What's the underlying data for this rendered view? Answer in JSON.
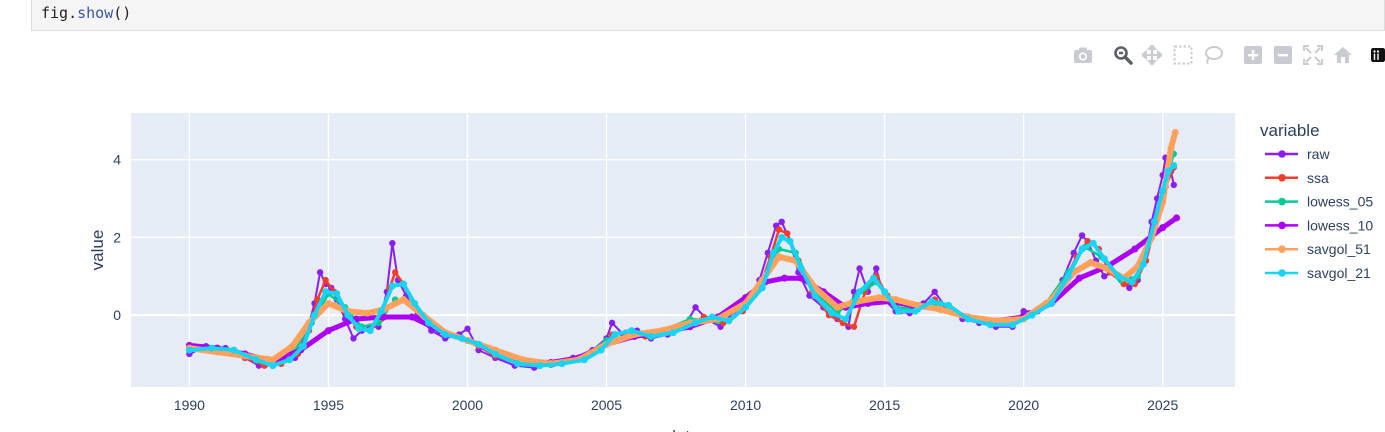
{
  "code": {
    "obj": "fig",
    "dot": ".",
    "fn": "show",
    "paren": "()"
  },
  "modebar": {
    "icons": [
      "camera-icon",
      "zoom-icon",
      "pan-icon",
      "box-select-icon",
      "lasso-select-icon",
      "zoom-in-icon",
      "zoom-out-icon",
      "autoscale-icon",
      "reset-axes-icon",
      "plotly-logo-icon"
    ]
  },
  "colors": {
    "plot_bg": "#e5ecf6",
    "raw": "#8b1ff2",
    "ssa": "#ef3f2c",
    "lowess_05": "#00cc96",
    "lowess_10": "#ab00f5",
    "savgol_51": "#ffa15a",
    "savgol_21": "#19d3f3"
  },
  "chart_data": {
    "type": "line",
    "xlabel": "date",
    "ylabel": "value",
    "legend_title": "variable",
    "legend_position": "right",
    "grid": true,
    "xlim": [
      1987.9,
      2027.6
    ],
    "ylim": [
      -1.85,
      5.2
    ],
    "xticks": [
      1990,
      1995,
      2000,
      2005,
      2010,
      2015,
      2020,
      2025
    ],
    "yticks": [
      0,
      2,
      4
    ],
    "series": [
      {
        "name": "raw",
        "marker_size": 3.2,
        "line_width": 2,
        "x": [
          1990,
          1990.6,
          1991.3,
          1992,
          1992.5,
          1992.9,
          1993.3,
          1993.8,
          1994.2,
          1994.5,
          1994.7,
          1994.9,
          1995.1,
          1995.3,
          1995.6,
          1995.9,
          1996.2,
          1996.5,
          1996.8,
          1997.1,
          1997.3,
          1997.5,
          1997.8,
          1998.2,
          1998.7,
          1999.2,
          1999.7,
          2000,
          2000.4,
          2001,
          2001.7,
          2002.4,
          2003.1,
          2003.8,
          2004.5,
          2005,
          2005.2,
          2005.6,
          2006.1,
          2006.6,
          2007.2,
          2007.8,
          2008.2,
          2008.6,
          2009.1,
          2009.6,
          2010.1,
          2010.5,
          2010.8,
          2011.1,
          2011.3,
          2011.6,
          2011.9,
          2012.3,
          2012.8,
          2013.3,
          2013.7,
          2013.9,
          2014.1,
          2014.4,
          2014.7,
          2015,
          2015.4,
          2015.9,
          2016.4,
          2016.8,
          2017.2,
          2017.8,
          2018.4,
          2019,
          2019.6,
          2020,
          2020.5,
          2021,
          2021.4,
          2021.8,
          2022.1,
          2022.3,
          2022.6,
          2022.9,
          2023.2,
          2023.5,
          2023.8,
          2024.1,
          2024.4,
          2024.6,
          2024.8,
          2025,
          2025.1,
          2025.2,
          2025.3,
          2025.4
        ],
        "y": [
          -1.0,
          -0.8,
          -0.85,
          -1.1,
          -1.3,
          -1.2,
          -1.25,
          -1.1,
          -0.5,
          0.3,
          1.1,
          0.8,
          0.7,
          0.4,
          -0.1,
          -0.6,
          -0.4,
          -0.3,
          -0.3,
          0.6,
          1.85,
          0.9,
          0.5,
          0.0,
          -0.4,
          -0.6,
          -0.5,
          -0.35,
          -0.9,
          -1.1,
          -1.3,
          -1.35,
          -1.25,
          -1.1,
          -0.9,
          -0.6,
          -0.2,
          -0.5,
          -0.4,
          -0.6,
          -0.5,
          -0.3,
          0.2,
          -0.1,
          -0.3,
          0.1,
          0.4,
          0.9,
          1.6,
          2.3,
          2.4,
          1.9,
          1.1,
          0.5,
          0.2,
          -0.1,
          -0.3,
          0.6,
          1.2,
          0.6,
          1.2,
          0.4,
          0.1,
          0.05,
          0.3,
          0.6,
          0.2,
          -0.1,
          -0.2,
          -0.3,
          -0.3,
          0.1,
          0.1,
          0.3,
          0.9,
          1.6,
          2.05,
          1.9,
          1.4,
          1.0,
          1.1,
          0.9,
          0.7,
          0.9,
          1.6,
          2.4,
          3.0,
          3.6,
          4.05,
          3.9,
          3.7,
          3.35
        ]
      },
      {
        "name": "ssa",
        "marker_size": 3.2,
        "line_width": 2.5,
        "x": [
          1990,
          1990.6,
          1991.3,
          1992,
          1992.7,
          1993.3,
          1993.9,
          1994.3,
          1994.6,
          1994.9,
          1995.2,
          1995.6,
          1996,
          1996.5,
          1996.9,
          1997.2,
          1997.4,
          1997.7,
          1998.1,
          1998.6,
          1999.2,
          1999.8,
          2000.4,
          2001,
          2001.8,
          2002.6,
          2003.4,
          2004.2,
          2004.8,
          2005.2,
          2005.7,
          2006.4,
          2007.2,
          2007.9,
          2008.5,
          2009.2,
          2009.9,
          2010.5,
          2010.9,
          2011.2,
          2011.5,
          2011.9,
          2012.4,
          2013,
          2013.5,
          2013.9,
          2014.3,
          2014.7,
          2015.1,
          2015.6,
          2016.2,
          2016.8,
          2017.4,
          2018,
          2018.8,
          2019.6,
          2020.3,
          2021,
          2021.5,
          2021.9,
          2022.3,
          2022.7,
          2023.1,
          2023.6,
          2024,
          2024.4,
          2024.8,
          2025.1,
          2025.4
        ],
        "y": [
          -0.9,
          -0.85,
          -0.9,
          -1.1,
          -1.3,
          -1.25,
          -1.0,
          -0.4,
          0.4,
          0.9,
          0.6,
          0.1,
          -0.3,
          -0.4,
          -0.1,
          0.7,
          1.1,
          0.8,
          0.3,
          -0.2,
          -0.5,
          -0.6,
          -0.8,
          -1.05,
          -1.25,
          -1.3,
          -1.25,
          -1.1,
          -0.9,
          -0.5,
          -0.45,
          -0.55,
          -0.45,
          -0.3,
          -0.05,
          -0.2,
          0.1,
          0.7,
          1.5,
          2.2,
          2.1,
          1.4,
          0.6,
          0.0,
          -0.2,
          -0.3,
          0.6,
          1.0,
          0.5,
          0.1,
          0.2,
          0.4,
          0.15,
          -0.1,
          -0.25,
          -0.25,
          0.0,
          0.3,
          0.9,
          1.5,
          1.9,
          1.7,
          1.1,
          0.8,
          0.8,
          1.4,
          2.5,
          3.3,
          3.8
        ]
      },
      {
        "name": "lowess_05",
        "marker_size": 3.2,
        "line_width": 2.5,
        "x": [
          1990,
          1991,
          1992,
          1993,
          1993.8,
          1994.4,
          1995,
          1995.6,
          1996.2,
          1996.8,
          1997.4,
          1998,
          1998.8,
          1999.6,
          2000.4,
          2001.2,
          2002,
          2003,
          2004,
          2005,
          2006,
          2007,
          2008,
          2009,
          2010,
          2010.6,
          2011.2,
          2011.8,
          2012.5,
          2013.3,
          2014,
          2014.7,
          2015.4,
          2016.2,
          2017,
          2018,
          2019,
          2020,
          2020.8,
          2021.6,
          2022.2,
          2022.8,
          2023.5,
          2024.1,
          2024.6,
          2025.1,
          2025.4
        ],
        "y": [
          -0.9,
          -0.9,
          -1.05,
          -1.2,
          -0.9,
          -0.2,
          0.55,
          0.2,
          -0.3,
          -0.2,
          0.4,
          0.3,
          -0.25,
          -0.55,
          -0.75,
          -1.05,
          -1.25,
          -1.28,
          -1.15,
          -0.65,
          -0.5,
          -0.4,
          -0.1,
          -0.15,
          0.25,
          0.8,
          1.7,
          1.6,
          0.6,
          0.05,
          0.5,
          0.85,
          0.2,
          0.15,
          0.3,
          -0.05,
          -0.2,
          -0.05,
          0.3,
          1.1,
          1.75,
          1.5,
          0.9,
          1.0,
          2.0,
          3.4,
          4.15
        ]
      },
      {
        "name": "lowess_10",
        "marker_size": 3.5,
        "line_width": 5,
        "x": [
          1990,
          1991,
          1992,
          1993,
          1994,
          1995,
          1996,
          1997,
          1998,
          1999,
          2000,
          2001,
          2002,
          2003,
          2004,
          2005,
          2006,
          2007,
          2008,
          2009,
          2010,
          2010.7,
          2011.4,
          2012,
          2012.8,
          2013.6,
          2014.4,
          2015.2,
          2016,
          2017,
          2018,
          2019,
          2020,
          2021,
          2022,
          2023,
          2024,
          2025,
          2025.5
        ],
        "y": [
          -0.78,
          -0.85,
          -1.0,
          -1.2,
          -0.9,
          -0.4,
          -0.1,
          -0.05,
          -0.05,
          -0.4,
          -0.65,
          -0.95,
          -1.2,
          -1.22,
          -1.1,
          -0.75,
          -0.55,
          -0.45,
          -0.3,
          -0.05,
          0.45,
          0.85,
          0.95,
          0.95,
          0.6,
          0.2,
          0.3,
          0.35,
          0.25,
          0.15,
          -0.05,
          -0.15,
          -0.05,
          0.3,
          0.95,
          1.25,
          1.7,
          2.25,
          2.5
        ]
      },
      {
        "name": "savgol_51",
        "marker_size": 3.5,
        "line_width": 6,
        "x": [
          1990,
          1991,
          1992,
          1993,
          1993.7,
          1994.3,
          1995,
          1995.7,
          1996.4,
          1997,
          1997.7,
          1998.4,
          1999.2,
          2000,
          2001,
          2002,
          2003,
          2004,
          2005,
          2006,
          2007,
          2008,
          2009,
          2010,
          2010.6,
          2011.2,
          2011.8,
          2012.5,
          2013.3,
          2014,
          2014.8,
          2015.4,
          2016.2,
          2017,
          2018,
          2019,
          2020,
          2021,
          2021.8,
          2022.4,
          2023,
          2023.6,
          2024.1,
          2024.6,
          2025,
          2025.3,
          2025.45
        ],
        "y": [
          -0.85,
          -0.95,
          -1.05,
          -1.15,
          -0.8,
          -0.2,
          0.3,
          0.1,
          0.05,
          0.15,
          0.4,
          0.0,
          -0.45,
          -0.65,
          -0.9,
          -1.15,
          -1.25,
          -1.15,
          -0.75,
          -0.5,
          -0.4,
          -0.2,
          -0.1,
          0.3,
          0.9,
          1.5,
          1.4,
          0.7,
          0.2,
          0.35,
          0.45,
          0.4,
          0.25,
          0.15,
          -0.05,
          -0.15,
          -0.1,
          0.4,
          1.1,
          1.35,
          1.2,
          0.95,
          1.25,
          2.0,
          2.9,
          4.3,
          4.7
        ]
      },
      {
        "name": "savgol_21",
        "marker_size": 3.5,
        "line_width": 4,
        "x": [
          1990,
          1990.8,
          1991.6,
          1992.4,
          1993,
          1993.6,
          1994.1,
          1994.5,
          1994.9,
          1995.3,
          1995.7,
          1996.1,
          1996.5,
          1996.9,
          1997.3,
          1997.7,
          1998.1,
          1998.6,
          1999.2,
          1999.8,
          2000.4,
          2001,
          2001.8,
          2002.6,
          2003.4,
          2004.2,
          2004.8,
          2005.3,
          2005.9,
          2006.6,
          2007.4,
          2008.2,
          2008.8,
          2009.4,
          2010,
          2010.6,
          2011,
          2011.3,
          2011.6,
          2012,
          2012.5,
          2013.1,
          2013.6,
          2014.1,
          2014.6,
          2015,
          2015.5,
          2016.1,
          2016.7,
          2017.3,
          2018,
          2018.8,
          2019.6,
          2020.3,
          2021,
          2021.6,
          2022.1,
          2022.5,
          2022.9,
          2023.4,
          2023.9,
          2024.3,
          2024.7,
          2025,
          2025.2,
          2025.4
        ],
        "y": [
          -0.9,
          -0.85,
          -0.9,
          -1.15,
          -1.3,
          -1.15,
          -0.8,
          0.0,
          0.6,
          0.55,
          0.0,
          -0.35,
          -0.4,
          0.1,
          0.75,
          0.8,
          0.3,
          -0.2,
          -0.5,
          -0.6,
          -0.75,
          -1.0,
          -1.25,
          -1.3,
          -1.25,
          -1.15,
          -0.9,
          -0.5,
          -0.4,
          -0.55,
          -0.45,
          -0.2,
          -0.05,
          -0.15,
          0.2,
          0.7,
          1.6,
          2.0,
          1.9,
          1.2,
          0.5,
          0.05,
          -0.1,
          0.6,
          0.95,
          0.6,
          0.1,
          0.1,
          0.35,
          0.25,
          -0.1,
          -0.25,
          -0.25,
          0.0,
          0.3,
          1.0,
          1.7,
          1.85,
          1.45,
          1.0,
          0.85,
          1.3,
          2.4,
          3.2,
          3.7,
          3.85
        ]
      }
    ]
  }
}
